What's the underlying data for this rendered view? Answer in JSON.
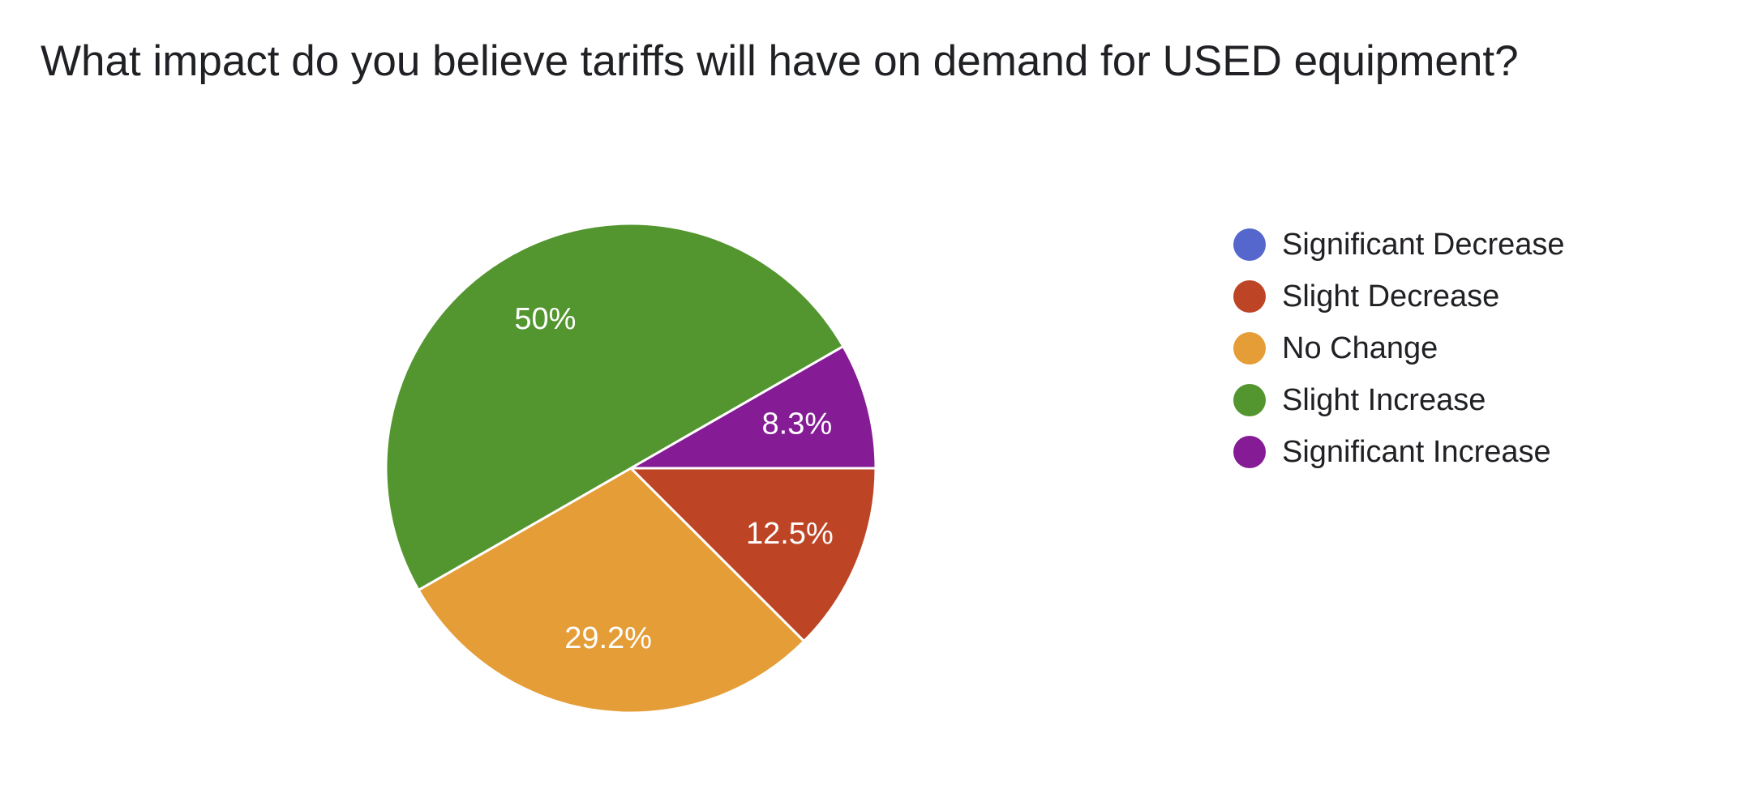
{
  "question": {
    "title": "What impact do you believe tariffs will have on demand for USED equipment?"
  },
  "chart_data": {
    "type": "pie",
    "title": "What impact do you believe tariffs will have on demand for USED equipment?",
    "categories": [
      "Significant Decrease",
      "Slight Decrease",
      "No Change",
      "Slight Increase",
      "Significant Increase"
    ],
    "values": [
      0,
      12.5,
      29.2,
      50,
      8.3
    ],
    "labels": [
      "",
      "12.5%",
      "29.2%",
      "50%",
      "8.3%"
    ],
    "colors": [
      "#5566CC",
      "#BD4526",
      "#E59D37",
      "#53952F",
      "#861B96"
    ],
    "legend_position": "right",
    "slice_order": [
      "Significant Decrease",
      "Slight Decrease",
      "No Change",
      "Slight Increase",
      "Significant Increase"
    ],
    "start_direction": "east",
    "rotation": "clockwise"
  }
}
